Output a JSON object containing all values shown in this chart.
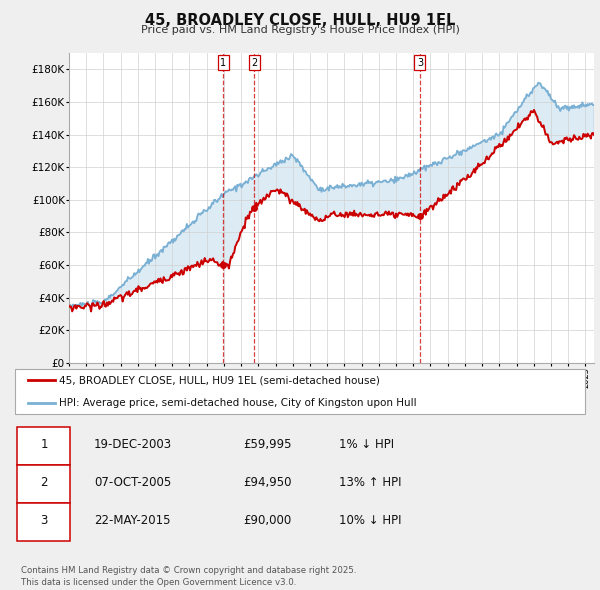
{
  "title": "45, BROADLEY CLOSE, HULL, HU9 1EL",
  "subtitle": "Price paid vs. HM Land Registry's House Price Index (HPI)",
  "ylim": [
    0,
    190000
  ],
  "yticks": [
    0,
    20000,
    40000,
    60000,
    80000,
    100000,
    120000,
    140000,
    160000,
    180000
  ],
  "ytick_labels": [
    "£0",
    "£20K",
    "£40K",
    "£60K",
    "£80K",
    "£100K",
    "£120K",
    "£140K",
    "£160K",
    "£180K"
  ],
  "sales": [
    {
      "date_num": 2003.96,
      "price": 59995,
      "label": "1"
    },
    {
      "date_num": 2005.77,
      "price": 94950,
      "label": "2"
    },
    {
      "date_num": 2015.39,
      "price": 90000,
      "label": "3"
    }
  ],
  "sale_line_color": "#cc0000",
  "hpi_line_color": "#7ab0d4",
  "legend_entries": [
    "45, BROADLEY CLOSE, HULL, HU9 1EL (semi-detached house)",
    "HPI: Average price, semi-detached house, City of Kingston upon Hull"
  ],
  "table_rows": [
    {
      "label": "1",
      "date": "19-DEC-2003",
      "price": "£59,995",
      "hpi_rel": "1% ↓ HPI"
    },
    {
      "label": "2",
      "date": "07-OCT-2005",
      "price": "£94,950",
      "hpi_rel": "13% ↑ HPI"
    },
    {
      "label": "3",
      "date": "22-MAY-2015",
      "price": "£90,000",
      "hpi_rel": "10% ↓ HPI"
    }
  ],
  "footer": "Contains HM Land Registry data © Crown copyright and database right 2025.\nThis data is licensed under the Open Government Licence v3.0.",
  "background_color": "#efefef",
  "plot_bg_color": "#ffffff",
  "grid_color": "#d0d0d0"
}
